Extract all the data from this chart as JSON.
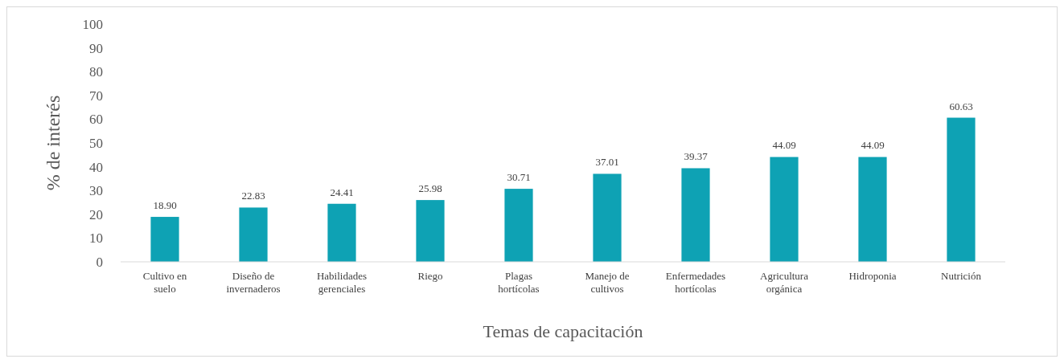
{
  "chart_data": {
    "type": "bar",
    "xlabel": "Temas de capacitación",
    "ylabel": "% de interés",
    "categories": [
      "Cultivo en suelo",
      "Diseño de invernaderos",
      "Habilidades gerenciales",
      "Riego",
      "Plagas hortícolas",
      "Manejo de cultivos",
      "Enfermedades hortícolas",
      "Agricultura orgánica",
      "Hidroponia",
      "Nutrición"
    ],
    "values": [
      18.9,
      22.83,
      24.41,
      25.98,
      30.71,
      37.01,
      39.37,
      44.09,
      44.09,
      60.63
    ],
    "value_labels": [
      "18.90",
      "22.83",
      "24.41",
      "25.98",
      "30.71",
      "37.01",
      "39.37",
      "44.09",
      "44.09",
      "60.63"
    ],
    "color": "#0ea2b4",
    "ylim": [
      0,
      100
    ],
    "yticks": [
      0,
      10,
      20,
      30,
      40,
      50,
      60,
      70,
      80,
      90,
      100
    ],
    "grid": false
  }
}
